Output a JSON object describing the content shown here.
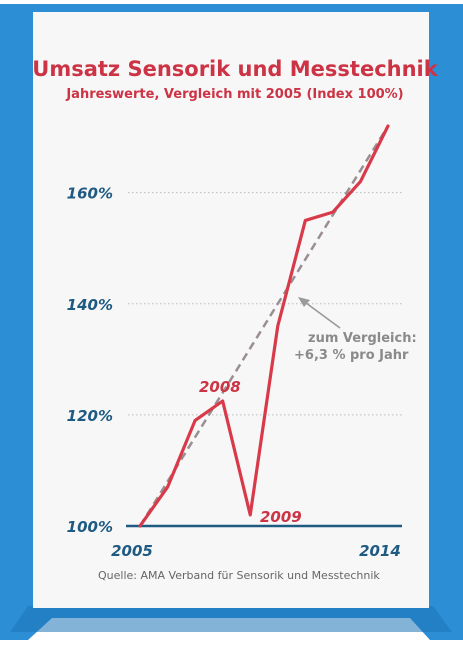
{
  "colors": {
    "frame_blue": "#2c8fd6",
    "frame_blue_dark": "#1f74b8",
    "panel": "#f7f7f7",
    "title_red": "#cc3344",
    "axis_blue": "#1f5a82",
    "series_red": "#d93a4a",
    "trend_gray": "#9a8e93",
    "note_gray": "#8a8a8a",
    "source_gray": "#666666",
    "grid": "#bbbbbb"
  },
  "chart_data": {
    "type": "line",
    "title": "Umsatz Sensorik und Messtechnik",
    "subtitle": "Jahreswerte, Vergleich mit 2005 (Index 100%)",
    "xlabel": "",
    "ylabel": "",
    "x_ticks": [
      "2005",
      "2014"
    ],
    "y_ticks": [
      "100%",
      "120%",
      "140%",
      "160%"
    ],
    "y_tick_values": [
      100,
      120,
      140,
      160
    ],
    "xlim": [
      2005,
      2014
    ],
    "ylim": [
      100,
      172
    ],
    "grid": true,
    "series": [
      {
        "x": [
          2005,
          2006,
          2007,
          2008,
          2009,
          2010,
          2011,
          2012,
          2013,
          2014
        ],
        "values": [
          100,
          107,
          119,
          122.5,
          102,
          136,
          155,
          156.5,
          162,
          172
        ],
        "style": "solid"
      },
      {
        "x": [
          2005,
          2014
        ],
        "values": [
          100,
          172
        ],
        "style": "dashed"
      }
    ],
    "annotations": [
      {
        "text": "2008",
        "x": 2008
      },
      {
        "text": "2009",
        "x": 2009
      },
      {
        "text": "zum Vergleich:",
        "x": 2011.6
      },
      {
        "text": "+6,3 % pro Jahr",
        "x": 2011.6
      }
    ],
    "source": "Quelle: AMA Verband für Sensorik und Messtechnik"
  }
}
